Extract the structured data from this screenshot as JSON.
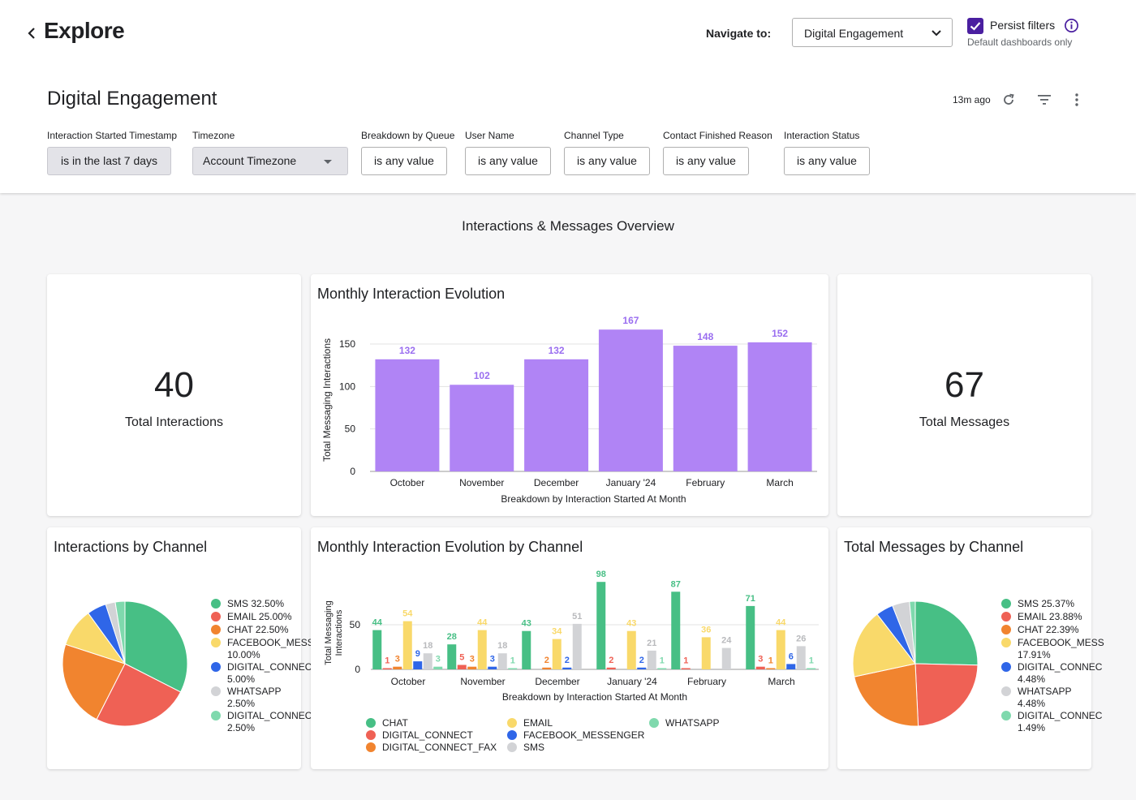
{
  "header": {
    "title": "Explore",
    "navigate_label": "Navigate to:",
    "navigate_value": "Digital Engagement",
    "persist_label": "Persist filters",
    "persist_sub": "Default dashboards only"
  },
  "dashboard": {
    "title": "Digital Engagement",
    "updated": "13m ago",
    "section_title": "Interactions & Messages Overview"
  },
  "filters": [
    {
      "label": "Interaction Started Timestamp",
      "value": "is in the last 7 days"
    },
    {
      "label": "Timezone",
      "value": "Account Timezone"
    },
    {
      "label": "Breakdown by Queue",
      "value": "is any value"
    },
    {
      "label": "User Name",
      "value": "is any value"
    },
    {
      "label": "Channel Type",
      "value": "is any value"
    },
    {
      "label": "Contact Finished Reason",
      "value": "is any value"
    },
    {
      "label": "Interaction Status",
      "value": "is any value"
    }
  ],
  "colors": {
    "accent": "#4a1fa0",
    "bar": "#b084f5",
    "bar_label": "#9a6ef0",
    "CHAT": "#47bf85",
    "DIGITAL_CONNECT": "#ef6155",
    "DIGITAL_CONNECT_FAX": "#f1842f",
    "EMAIL": "#f9d96a",
    "FACEBOOK_MESSENGER": "#2f66e8",
    "SMS": "#d2d3d6",
    "WHATSAPP": "#7fd9ad"
  },
  "kpis": {
    "interactions": {
      "value": "40",
      "label": "Total Interactions"
    },
    "messages": {
      "value": "67",
      "label": "Total Messages"
    }
  },
  "chart_data": [
    {
      "type": "bar",
      "title": "Monthly Interaction Evolution",
      "categories": [
        "October",
        "November",
        "December",
        "January '24",
        "February",
        "March"
      ],
      "values": [
        132,
        102,
        132,
        167,
        148,
        152
      ],
      "xlabel": "Breakdown by Interaction Started At Month",
      "ylabel": "Total Messaging Interactions",
      "yticks": [
        0,
        50,
        100,
        150
      ],
      "ylim": [
        0,
        170
      ]
    },
    {
      "type": "pie",
      "title": "Interactions by Channel",
      "legend": [
        {
          "name": "SMS",
          "text": "SMS 32.50%",
          "value": 32.5,
          "color": "#47bf85"
        },
        {
          "name": "EMAIL",
          "text": "EMAIL 25.00%",
          "value": 25.0,
          "color": "#ef6155"
        },
        {
          "name": "CHAT",
          "text": "CHAT 22.50%",
          "value": 22.5,
          "color": "#f1842f"
        },
        {
          "name": "FACEBOOK_MESSENGER",
          "text": "FACEBOOK_MESS\n10.00%",
          "value": 10.0,
          "color": "#f9d96a"
        },
        {
          "name": "DIGITAL_CONNECT",
          "text": "DIGITAL_CONNEC\n5.00%",
          "value": 5.0,
          "color": "#2f66e8"
        },
        {
          "name": "WHATSAPP",
          "text": "WHATSAPP\n2.50%",
          "value": 2.5,
          "color": "#d2d3d6"
        },
        {
          "name": "DIGITAL_CONNECT_FAX",
          "text": "DIGITAL_CONNEC\n2.50%",
          "value": 2.5,
          "color": "#7fd9ad"
        }
      ]
    },
    {
      "type": "bar",
      "title": "Monthly Interaction Evolution by Channel",
      "categories": [
        "October",
        "November",
        "December",
        "January '24",
        "February",
        "March"
      ],
      "xlabel": "Breakdown by Interaction Started At Month",
      "ylabel": "Total Messaging Interactions",
      "yticks": [
        0,
        50
      ],
      "ylim": [
        0,
        100
      ],
      "series": [
        {
          "name": "CHAT",
          "values": [
            44,
            28,
            43,
            98,
            87,
            71
          ],
          "color": "#47bf85"
        },
        {
          "name": "DIGITAL_CONNECT",
          "values": [
            1,
            5,
            null,
            2,
            1,
            3
          ],
          "color": "#ef6155"
        },
        {
          "name": "DIGITAL_CONNECT_FAX",
          "values": [
            3,
            3,
            2,
            null,
            null,
            1
          ],
          "color": "#f1842f"
        },
        {
          "name": "EMAIL",
          "values": [
            54,
            44,
            34,
            43,
            36,
            44
          ],
          "color": "#f9d96a"
        },
        {
          "name": "FACEBOOK_MESSENGER",
          "values": [
            9,
            3,
            2,
            2,
            null,
            6
          ],
          "color": "#2f66e8"
        },
        {
          "name": "SMS",
          "values": [
            18,
            18,
            51,
            21,
            24,
            26
          ],
          "color": "#d2d3d6"
        },
        {
          "name": "WHATSAPP",
          "values": [
            3,
            1,
            null,
            1,
            null,
            1
          ],
          "color": "#7fd9ad"
        }
      ]
    },
    {
      "type": "pie",
      "title": "Total Messages by Channel",
      "legend": [
        {
          "name": "SMS",
          "text": "SMS 25.37%",
          "value": 25.37,
          "color": "#47bf85"
        },
        {
          "name": "EMAIL",
          "text": "EMAIL 23.88%",
          "value": 23.88,
          "color": "#ef6155"
        },
        {
          "name": "CHAT",
          "text": "CHAT 22.39%",
          "value": 22.39,
          "color": "#f1842f"
        },
        {
          "name": "FACEBOOK_MESSENGER",
          "text": "FACEBOOK_MESS\n17.91%",
          "value": 17.91,
          "color": "#f9d96a"
        },
        {
          "name": "DIGITAL_CONNECT",
          "text": "DIGITAL_CONNEC\n4.48%",
          "value": 4.48,
          "color": "#2f66e8"
        },
        {
          "name": "WHATSAPP",
          "text": "WHATSAPP\n4.48%",
          "value": 4.48,
          "color": "#d2d3d6"
        },
        {
          "name": "DIGITAL_CONNECT_FAX",
          "text": "DIGITAL_CONNEC\n1.49%",
          "value": 1.49,
          "color": "#7fd9ad"
        }
      ]
    }
  ]
}
